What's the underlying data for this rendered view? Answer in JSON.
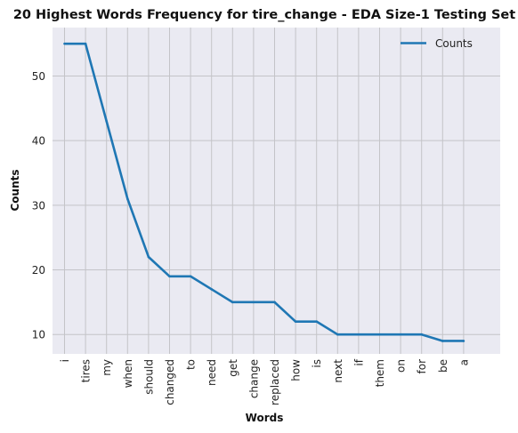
{
  "chart_data": {
    "type": "line",
    "title": "20 Highest Words Frequency for tire_change - EDA Size-1 Testing Set",
    "xlabel": "Words",
    "ylabel": "Counts",
    "categories": [
      "i",
      "tires",
      "my",
      "when",
      "should",
      "changed",
      "to",
      "need",
      "get",
      "change",
      "replaced",
      "how",
      "is",
      "next",
      "if",
      "them",
      "on",
      "for",
      "be",
      "a"
    ],
    "series": [
      {
        "name": "Counts",
        "values": [
          55,
          55,
          43,
          31,
          22,
          19,
          19,
          17,
          15,
          15,
          15,
          12,
          12,
          10,
          10,
          10,
          10,
          10,
          9,
          9
        ]
      }
    ],
    "ylim": [
      7,
      57.5
    ],
    "yticks": [
      10,
      20,
      30,
      40,
      50
    ],
    "grid": true,
    "legend_position": "top-right",
    "colors": {
      "line": "#1f77b4",
      "plot_background": "#eaeaf2"
    }
  }
}
